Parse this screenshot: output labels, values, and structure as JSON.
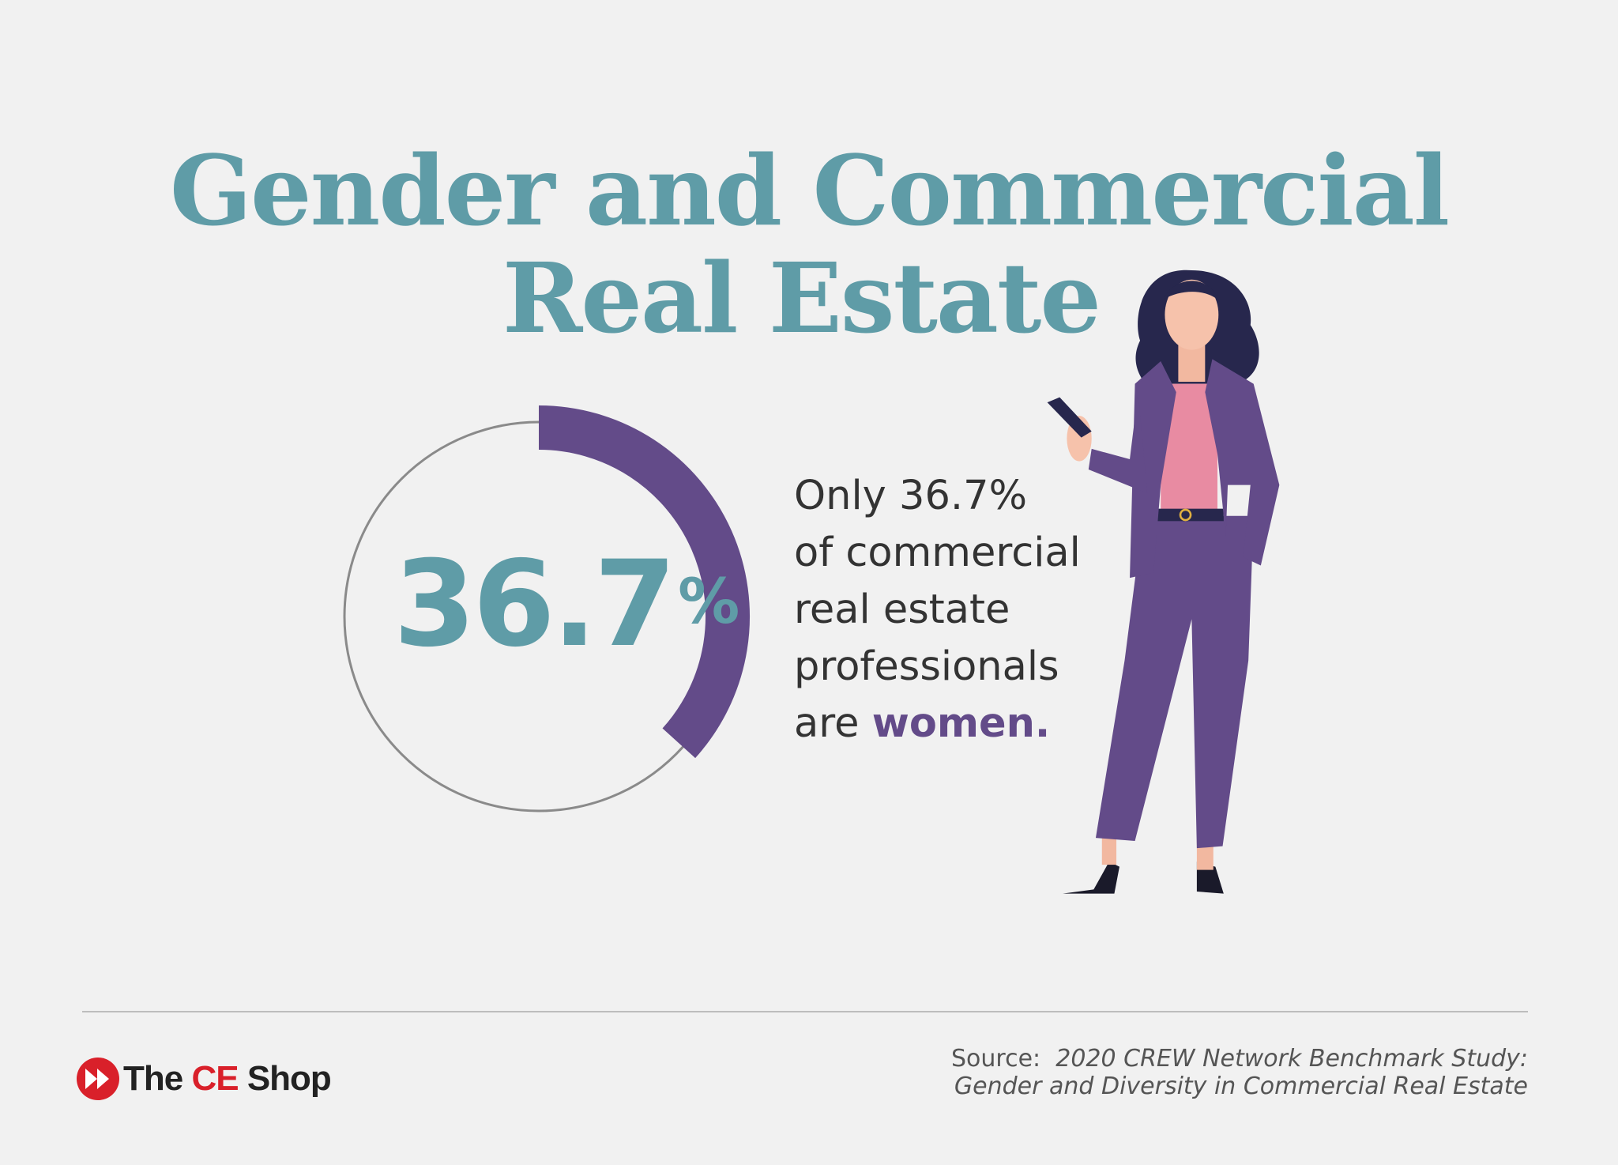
{
  "title": {
    "line1": "Gender and Commercial",
    "line2": "Real Estate"
  },
  "stat": {
    "value": "36.7",
    "unit": "%",
    "fraction": 0.367
  },
  "description": {
    "line1": "Only 36.7%",
    "line2": "of commercial",
    "line3": "real estate",
    "line4": "professionals",
    "line5_prefix": "are ",
    "line5_highlight": "women."
  },
  "logo": {
    "the": "The",
    "ce": "CE",
    "shop": "Shop"
  },
  "source": {
    "label": "Source:",
    "line1": "2020 CREW Network Benchmark Study:",
    "line2": "Gender and Diversity in Commercial Real Estate"
  },
  "colors": {
    "teal": "#5f9ca7",
    "purple": "#634b89",
    "background": "#f1f1f1",
    "logo_red": "#d9202a"
  },
  "icons": {
    "logo": "fast-forward-icon",
    "illustration": "businesswoman-with-phone"
  }
}
